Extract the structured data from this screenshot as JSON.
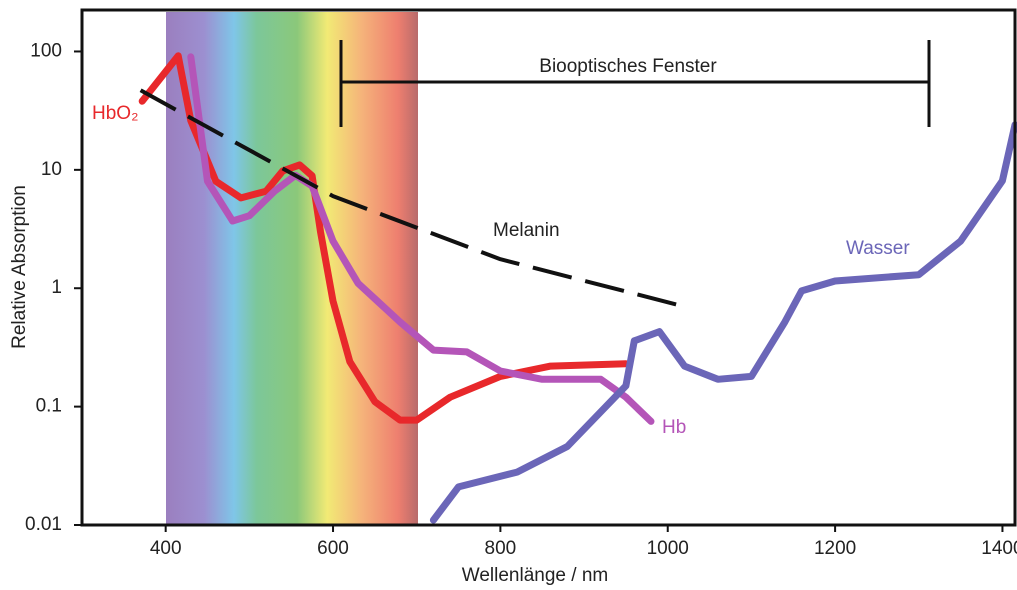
{
  "chart_data": {
    "type": "line",
    "x_label": "Wellenlänge / nm",
    "y_label": "Relative Absorption",
    "annotation": "Biooptisches Fenster",
    "xlim": [
      300,
      1415
    ],
    "ylim": [
      0.01,
      224
    ],
    "ylog": true,
    "xticks": [
      400,
      600,
      800,
      1000,
      1200,
      1400
    ],
    "yticks": [
      0.01,
      0.1,
      1,
      10,
      100
    ],
    "series": [
      {
        "name": "HbO₂",
        "color": "#e8282b",
        "dashed": false,
        "x": [
          372,
          415,
          430,
          460,
          490,
          520,
          540,
          560,
          575,
          585,
          600,
          620,
          650,
          680,
          700,
          740,
          800,
          860,
          950
        ],
        "values": [
          38,
          92,
          26,
          8,
          5.8,
          6.6,
          9.8,
          11,
          8.9,
          3.0,
          0.78,
          0.24,
          0.11,
          0.077,
          0.077,
          0.12,
          0.18,
          0.22,
          0.23
        ]
      },
      {
        "name": "Hb",
        "color": "#b455b8",
        "dashed": false,
        "x": [
          430,
          450,
          480,
          500,
          530,
          555,
          575,
          600,
          630,
          680,
          720,
          760,
          800,
          850,
          920,
          950,
          980
        ],
        "values": [
          90,
          8,
          3.7,
          4.1,
          6.6,
          9.0,
          7.3,
          2.5,
          1.1,
          0.52,
          0.3,
          0.29,
          0.2,
          0.17,
          0.17,
          0.12,
          0.075
        ]
      },
      {
        "name": "Wasser",
        "color": "#6b66b8",
        "dashed": false,
        "x": [
          720,
          750,
          820,
          880,
          950,
          960,
          990,
          1020,
          1060,
          1100,
          1140,
          1160,
          1200,
          1300,
          1350,
          1400,
          1415
        ],
        "values": [
          0.011,
          0.021,
          0.028,
          0.046,
          0.15,
          0.36,
          0.43,
          0.22,
          0.17,
          0.18,
          0.52,
          0.95,
          1.15,
          1.3,
          2.5,
          8.1,
          24
        ]
      },
      {
        "name": "Melanin",
        "color": "#111111",
        "dashed": true,
        "x": [
          370,
          600,
          800,
          1010
        ],
        "values": [
          47,
          6.0,
          1.76,
          0.73
        ]
      }
    ]
  }
}
